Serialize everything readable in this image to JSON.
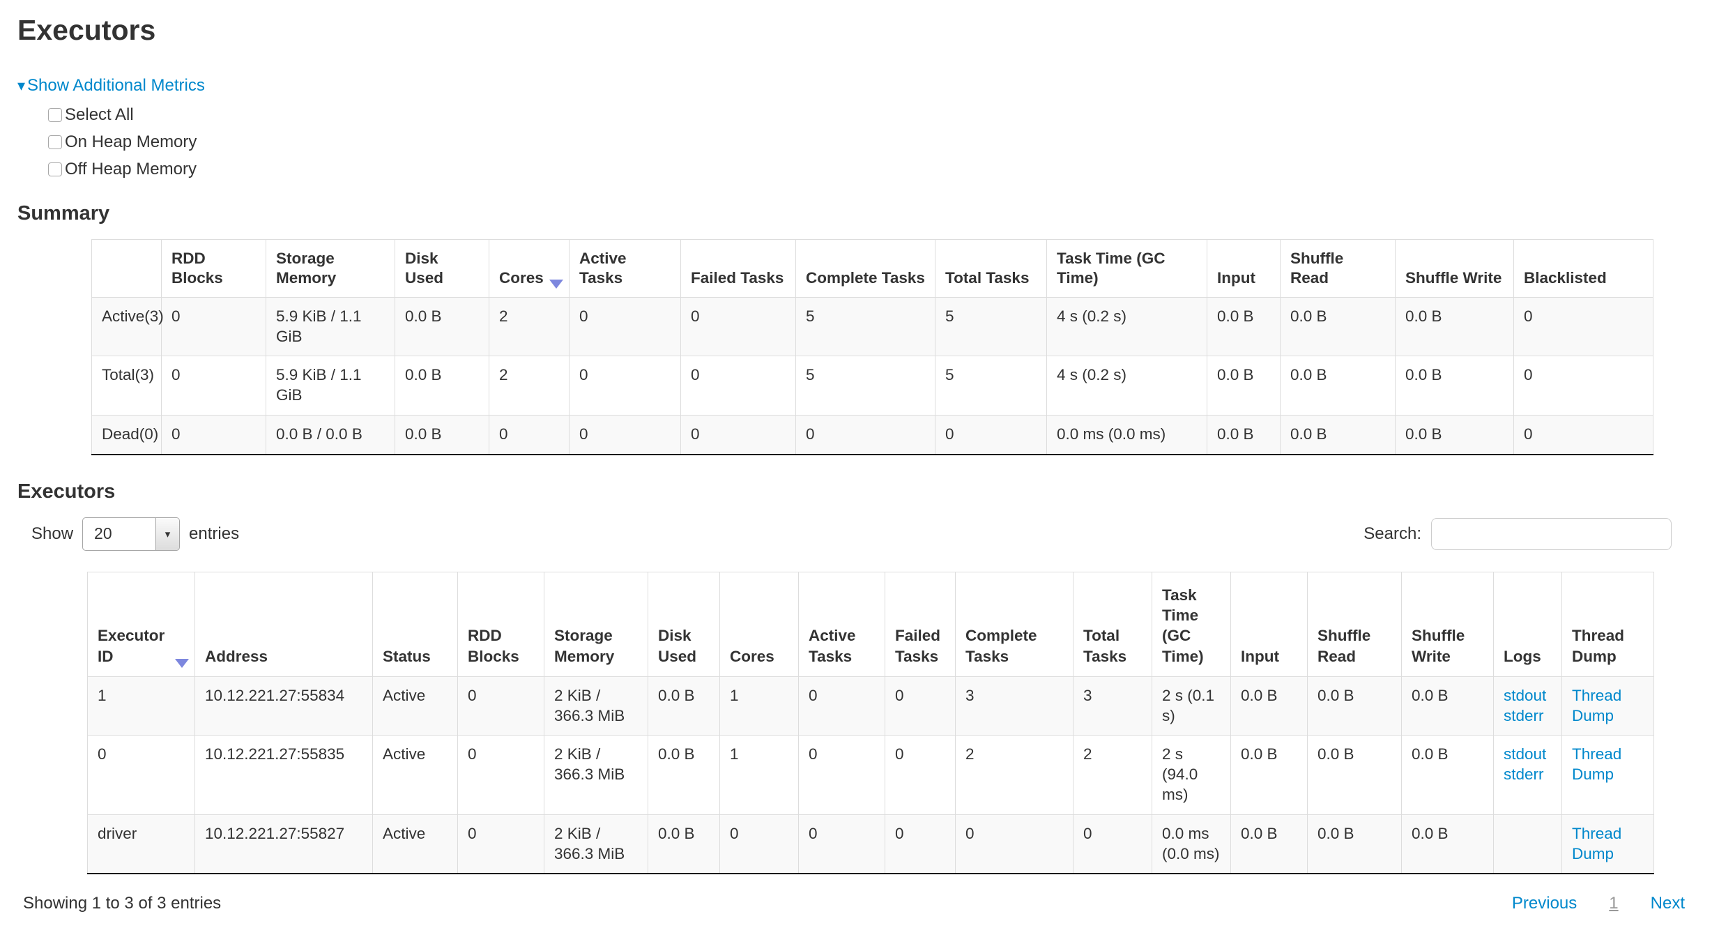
{
  "page": {
    "title": "Executors",
    "summary_heading": "Summary",
    "executors_heading": "Executors"
  },
  "icons": {
    "caret_down": "▾",
    "dropdown_caret": "▾"
  },
  "metrics": {
    "toggle_label": "Show Additional Metrics",
    "checkboxes": [
      {
        "label": "Select All",
        "checked": false
      },
      {
        "label": "On Heap Memory",
        "checked": false
      },
      {
        "label": "Off Heap Memory",
        "checked": false
      }
    ]
  },
  "summary_table": {
    "columns": [
      "",
      "RDD Blocks",
      "Storage Memory",
      "Disk Used",
      "Cores",
      "Active Tasks",
      "Failed Tasks",
      "Complete Tasks",
      "Total Tasks",
      "Task Time (GC Time)",
      "Input",
      "Shuffle Read",
      "Shuffle Write",
      "Blacklisted"
    ],
    "sorted_column_index": 4,
    "sort_direction": "desc",
    "rows": [
      {
        "label": "Active(3)",
        "cells": [
          "0",
          "5.9 KiB / 1.1 GiB",
          "0.0 B",
          "2",
          "0",
          "0",
          "5",
          "5",
          "4 s (0.2 s)",
          "0.0 B",
          "0.0 B",
          "0.0 B",
          "0"
        ]
      },
      {
        "label": "Total(3)",
        "cells": [
          "0",
          "5.9 KiB / 1.1 GiB",
          "0.0 B",
          "2",
          "0",
          "0",
          "5",
          "5",
          "4 s (0.2 s)",
          "0.0 B",
          "0.0 B",
          "0.0 B",
          "0"
        ]
      },
      {
        "label": "Dead(0)",
        "cells": [
          "0",
          "0.0 B / 0.0 B",
          "0.0 B",
          "0",
          "0",
          "0",
          "0",
          "0",
          "0.0 ms (0.0 ms)",
          "0.0 B",
          "0.0 B",
          "0.0 B",
          "0"
        ]
      }
    ]
  },
  "table_controls": {
    "show_label": "Show",
    "page_size": "20",
    "entries_label": "entries",
    "search_label": "Search:",
    "search_value": ""
  },
  "executors_table": {
    "columns": [
      "Executor ID",
      "Address",
      "Status",
      "RDD Blocks",
      "Storage Memory",
      "Disk Used",
      "Cores",
      "Active Tasks",
      "Failed Tasks",
      "Complete Tasks",
      "Total Tasks",
      "Task Time (GC Time)",
      "Input",
      "Shuffle Read",
      "Shuffle Write",
      "Logs",
      "Thread Dump"
    ],
    "sorted_column_index": 0,
    "sort_direction": "desc",
    "rows": [
      {
        "cells": [
          "1",
          "10.12.221.27:55834",
          "Active",
          "0",
          "2 KiB / 366.3 MiB",
          "0.0 B",
          "1",
          "0",
          "0",
          "3",
          "3",
          "2 s (0.1 s)",
          "0.0 B",
          "0.0 B",
          "0.0 B"
        ],
        "logs": [
          "stdout",
          "stderr"
        ],
        "thread_dump": "Thread Dump"
      },
      {
        "cells": [
          "0",
          "10.12.221.27:55835",
          "Active",
          "0",
          "2 KiB / 366.3 MiB",
          "0.0 B",
          "1",
          "0",
          "0",
          "2",
          "2",
          "2 s (94.0 ms)",
          "0.0 B",
          "0.0 B",
          "0.0 B"
        ],
        "logs": [
          "stdout",
          "stderr"
        ],
        "thread_dump": "Thread Dump"
      },
      {
        "cells": [
          "driver",
          "10.12.221.27:55827",
          "Active",
          "0",
          "2 KiB / 366.3 MiB",
          "0.0 B",
          "0",
          "0",
          "0",
          "0",
          "0",
          "0.0 ms (0.0 ms)",
          "0.0 B",
          "0.0 B",
          "0.0 B"
        ],
        "logs": [],
        "thread_dump": "Thread Dump"
      }
    ]
  },
  "footer": {
    "status": "Showing 1 to 3 of 3 entries",
    "pagination": {
      "previous": "Previous",
      "current_page": "1",
      "next": "Next"
    }
  },
  "colors": {
    "link": "#0088cc",
    "sort_arrow": "#7d87de",
    "row_stripe": "#f9f9f9",
    "table_border": "#dddddd",
    "table_bottom_border": "#151515",
    "text": "#333333",
    "pagination_current": "#999999"
  }
}
